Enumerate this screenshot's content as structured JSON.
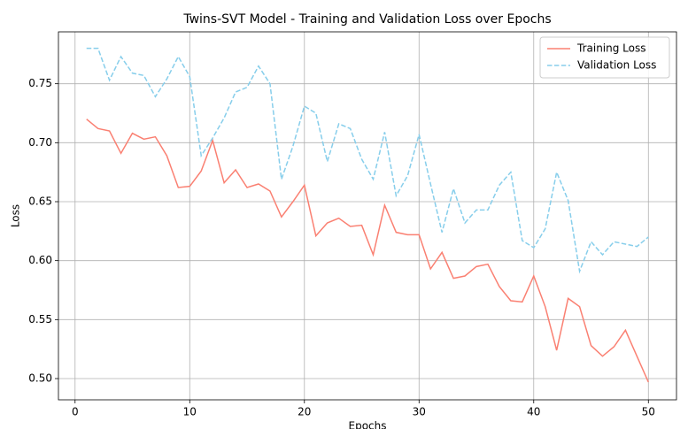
{
  "chart_data": {
    "type": "line",
    "title": "Twins-SVT Model - Training and Validation Loss over Epochs",
    "x_label": "Epochs",
    "y_label": "Loss",
    "x": [
      1,
      2,
      3,
      4,
      5,
      6,
      7,
      8,
      9,
      10,
      11,
      12,
      13,
      14,
      15,
      16,
      17,
      18,
      19,
      20,
      21,
      22,
      23,
      24,
      25,
      26,
      27,
      28,
      29,
      30,
      31,
      32,
      33,
      34,
      35,
      36,
      37,
      38,
      39,
      40,
      41,
      42,
      43,
      44,
      45,
      46,
      47,
      48,
      49,
      50
    ],
    "series": [
      {
        "name": "Training Loss",
        "color": "#fa8072",
        "dash": false,
        "values": [
          0.72,
          0.712,
          0.71,
          0.691,
          0.708,
          0.703,
          0.705,
          0.689,
          0.662,
          0.663,
          0.676,
          0.702,
          0.666,
          0.677,
          0.662,
          0.665,
          0.659,
          0.637,
          0.65,
          0.664,
          0.621,
          0.632,
          0.636,
          0.629,
          0.63,
          0.605,
          0.647,
          0.624,
          0.622,
          0.622,
          0.593,
          0.607,
          0.585,
          0.587,
          0.595,
          0.597,
          0.578,
          0.566,
          0.565,
          0.587,
          0.561,
          0.524,
          0.568,
          0.561,
          0.528,
          0.519,
          0.527,
          0.541,
          0.519,
          0.497
        ]
      },
      {
        "name": "Validation Loss",
        "color": "#87ceeb",
        "dash": true,
        "values": [
          0.78,
          0.78,
          0.753,
          0.773,
          0.759,
          0.757,
          0.739,
          0.754,
          0.773,
          0.756,
          0.689,
          0.704,
          0.721,
          0.743,
          0.747,
          0.765,
          0.75,
          0.669,
          0.697,
          0.731,
          0.725,
          0.684,
          0.716,
          0.712,
          0.686,
          0.669,
          0.709,
          0.655,
          0.672,
          0.707,
          0.665,
          0.624,
          0.661,
          0.632,
          0.643,
          0.643,
          0.664,
          0.675,
          0.617,
          0.611,
          0.627,
          0.675,
          0.651,
          0.591,
          0.616,
          0.605,
          0.616,
          0.614,
          0.612,
          0.62
        ]
      }
    ],
    "xlim": [
      -1.45,
      52.45
    ],
    "ylim": [
      0.482,
      0.794
    ],
    "xticks": [
      0,
      10,
      20,
      30,
      40,
      50
    ],
    "yticks": [
      {
        "value": 0.5,
        "label": "0.50"
      },
      0.55,
      {
        "value": 0.6,
        "label": "0.60"
      },
      0.65,
      {
        "value": 0.7,
        "label": "0.70"
      },
      0.75
    ],
    "grid": true,
    "legend": "upper right"
  }
}
